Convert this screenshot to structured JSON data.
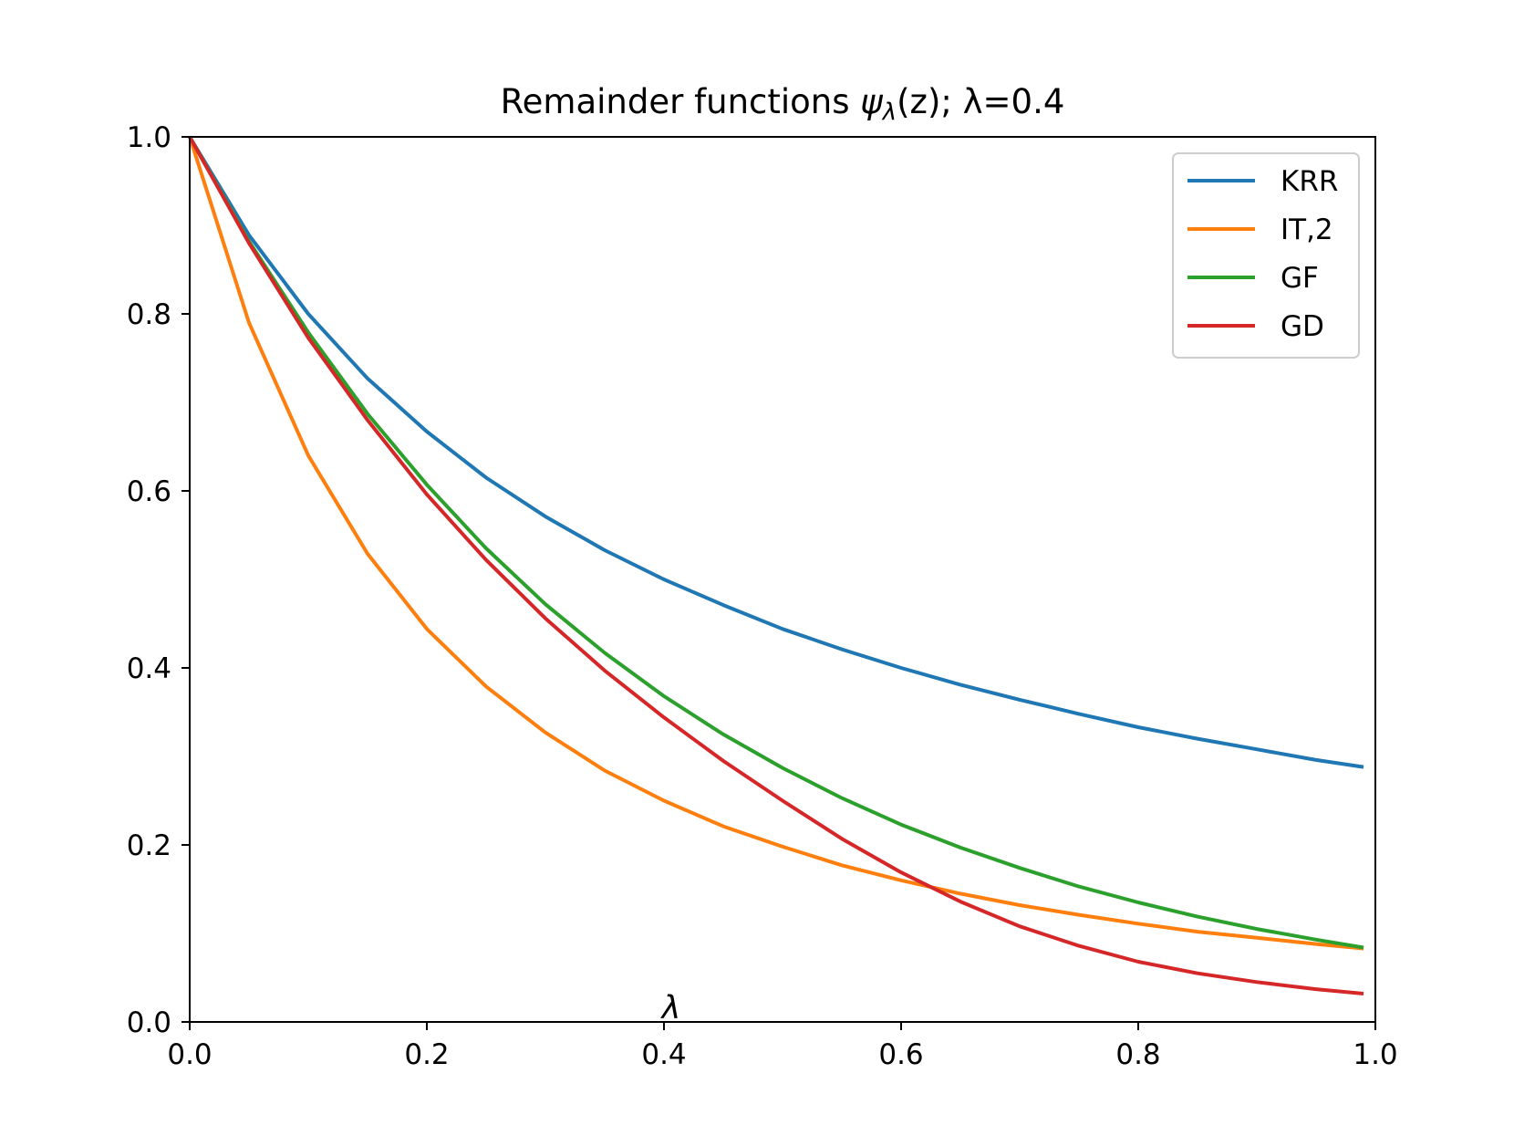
{
  "chart_data": {
    "type": "line",
    "title": "Remainder functions ψλ(z); λ=0.4",
    "title_parts": {
      "prefix": "Remainder functions ",
      "symbol": "ψ",
      "subscript": "λ",
      "argument": "(z)",
      "suffix": "; λ=0.4"
    },
    "xlabel": "",
    "ylabel": "",
    "annotation": {
      "text": "λ",
      "x": 0.4,
      "y": 0.0
    },
    "xlim": [
      0.0,
      1.0
    ],
    "ylim": [
      0.0,
      1.0
    ],
    "xticks": [
      0.0,
      0.2,
      0.4,
      0.6,
      0.8,
      1.0
    ],
    "yticks": [
      0.0,
      0.2,
      0.4,
      0.6,
      0.8,
      1.0
    ],
    "xtick_labels": [
      "0.0",
      "0.2",
      "0.4",
      "0.6",
      "0.8",
      "1.0"
    ],
    "ytick_labels": [
      "0.0",
      "0.2",
      "0.4",
      "0.6",
      "0.8",
      "1.0"
    ],
    "grid": false,
    "legend": {
      "position": "top-right"
    },
    "series": [
      {
        "name": "KRR",
        "color": "#1f77b4",
        "x": [
          0.0,
          0.05,
          0.1,
          0.15,
          0.2,
          0.25,
          0.3,
          0.35,
          0.4,
          0.45,
          0.5,
          0.55,
          0.6,
          0.65,
          0.7,
          0.75,
          0.8,
          0.85,
          0.9,
          0.95,
          0.99
        ],
        "y": [
          1.0,
          0.889,
          0.8,
          0.727,
          0.667,
          0.615,
          0.571,
          0.533,
          0.5,
          0.471,
          0.444,
          0.421,
          0.4,
          0.381,
          0.364,
          0.348,
          0.333,
          0.32,
          0.308,
          0.296,
          0.288
        ]
      },
      {
        "name": "IT,2",
        "color": "#ff7f0e",
        "x": [
          0.0,
          0.05,
          0.1,
          0.15,
          0.2,
          0.25,
          0.3,
          0.35,
          0.4,
          0.45,
          0.5,
          0.55,
          0.6,
          0.65,
          0.7,
          0.75,
          0.8,
          0.85,
          0.9,
          0.95,
          0.99
        ],
        "y": [
          1.0,
          0.79,
          0.64,
          0.529,
          0.444,
          0.379,
          0.327,
          0.284,
          0.25,
          0.221,
          0.198,
          0.177,
          0.16,
          0.145,
          0.132,
          0.121,
          0.111,
          0.102,
          0.095,
          0.088,
          0.083
        ]
      },
      {
        "name": "GF",
        "color": "#2ca02c",
        "x": [
          0.0,
          0.05,
          0.1,
          0.15,
          0.2,
          0.25,
          0.3,
          0.35,
          0.4,
          0.45,
          0.5,
          0.55,
          0.6,
          0.65,
          0.7,
          0.75,
          0.8,
          0.85,
          0.9,
          0.95,
          0.99
        ],
        "y": [
          1.0,
          0.882,
          0.779,
          0.687,
          0.607,
          0.535,
          0.472,
          0.417,
          0.368,
          0.325,
          0.287,
          0.253,
          0.223,
          0.197,
          0.174,
          0.153,
          0.135,
          0.119,
          0.105,
          0.093,
          0.084
        ]
      },
      {
        "name": "GD",
        "color": "#d62728",
        "x": [
          0.0,
          0.05,
          0.1,
          0.15,
          0.2,
          0.25,
          0.3,
          0.35,
          0.4,
          0.45,
          0.5,
          0.55,
          0.6,
          0.65,
          0.7,
          0.75,
          0.8,
          0.85,
          0.9,
          0.95,
          0.99
        ],
        "y": [
          1.0,
          0.88,
          0.773,
          0.68,
          0.596,
          0.522,
          0.456,
          0.397,
          0.344,
          0.295,
          0.25,
          0.207,
          0.169,
          0.136,
          0.108,
          0.086,
          0.068,
          0.055,
          0.045,
          0.037,
          0.032
        ]
      }
    ]
  }
}
